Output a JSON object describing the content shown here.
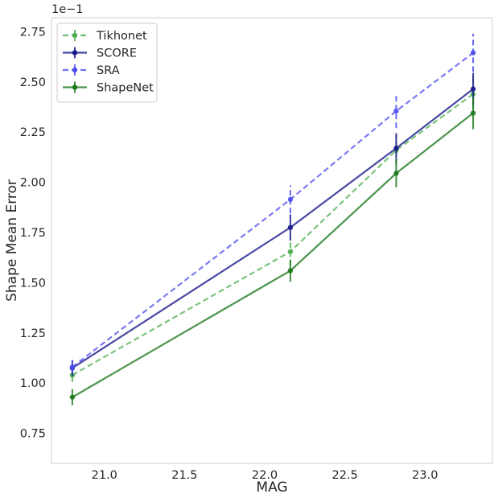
{
  "chart_data": {
    "type": "line",
    "xlabel": "MAG",
    "ylabel": "Shape Mean Error",
    "y_offset_label": "1e−1",
    "xlim": [
      20.67,
      23.42
    ],
    "ylim": [
      0.6,
      2.82
    ],
    "xticks": [
      21.0,
      21.5,
      22.0,
      22.5,
      23.0
    ],
    "xtick_labels": [
      "21.0",
      "21.5",
      "22.0",
      "22.5",
      "23.0"
    ],
    "yticks": [
      0.75,
      1.0,
      1.25,
      1.5,
      1.75,
      2.0,
      2.25,
      2.5,
      2.75
    ],
    "ytick_labels": [
      "0.75",
      "1.00",
      "1.25",
      "1.50",
      "1.75",
      "2.00",
      "2.25",
      "2.50",
      "2.75"
    ],
    "grid": false,
    "legend_position": "top-left",
    "x": [
      20.8,
      22.16,
      22.82,
      23.3
    ],
    "series": [
      {
        "name": "Tikhonet",
        "color": "#4caf50",
        "linestyle": "dashed",
        "values": [
          1.04,
          1.655,
          2.16,
          2.44
        ],
        "errors": [
          0.035,
          0.07,
          0.075,
          0.075
        ]
      },
      {
        "name": "SCORE",
        "color": "#1a1a8c",
        "linestyle": "solid",
        "values": [
          1.075,
          1.775,
          2.17,
          2.465
        ],
        "errors": [
          0.04,
          0.065,
          0.075,
          0.08
        ]
      },
      {
        "name": "SRA",
        "color": "#4d4df0",
        "linestyle": "dashed",
        "values": [
          1.08,
          1.915,
          2.355,
          2.645
        ],
        "errors": [
          0.035,
          0.07,
          0.085,
          0.095
        ]
      },
      {
        "name": "ShapeNet",
        "color": "#1e7a1e",
        "linestyle": "solid",
        "values": [
          0.93,
          1.56,
          2.045,
          2.345
        ],
        "errors": [
          0.04,
          0.055,
          0.07,
          0.08
        ]
      }
    ]
  }
}
